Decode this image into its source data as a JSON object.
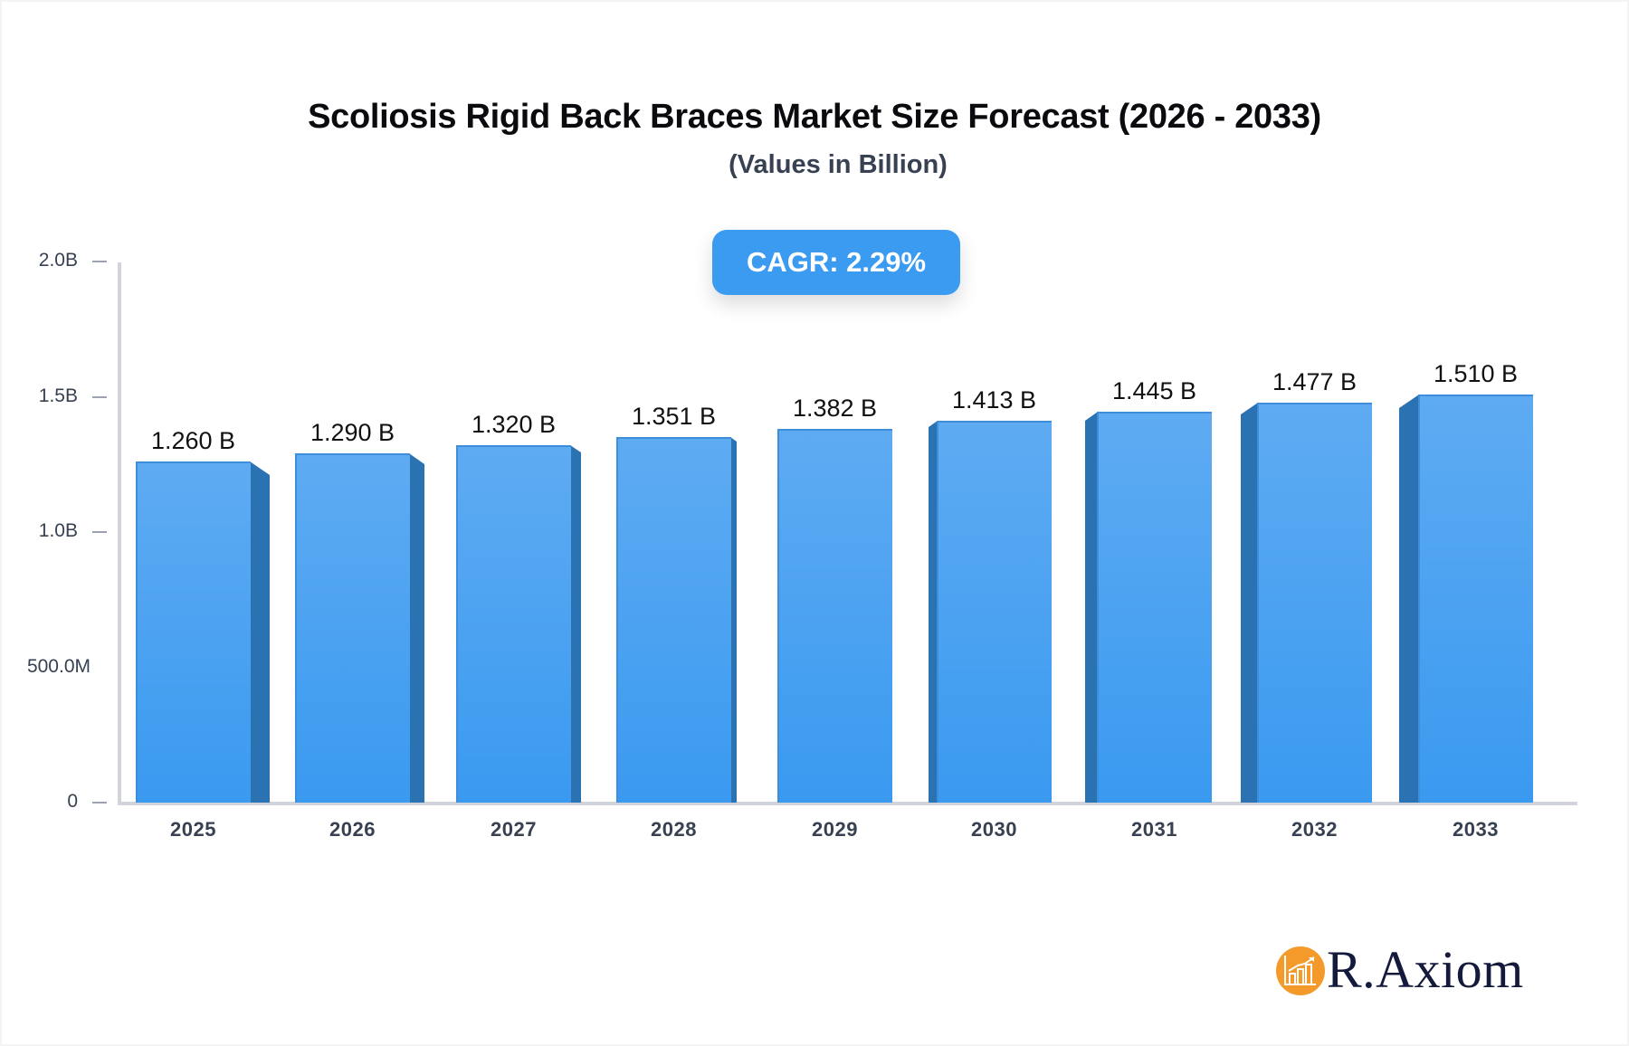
{
  "chart_data": {
    "type": "bar",
    "title": "Scoliosis Rigid Back Braces Market Size Forecast (2026 - 2033)",
    "subtitle": "(Values in Billion)",
    "xlabel": "",
    "ylabel": "",
    "categories": [
      "2025",
      "2026",
      "2027",
      "2028",
      "2029",
      "2030",
      "2031",
      "2032",
      "2033"
    ],
    "values": [
      1.26,
      1.29,
      1.32,
      1.351,
      1.382,
      1.413,
      1.445,
      1.477,
      1.51
    ],
    "value_labels": [
      "1.260 B",
      "1.290 B",
      "1.320 B",
      "1.351 B",
      "1.382 B",
      "1.413 B",
      "1.445 B",
      "1.477 B",
      "1.510 B"
    ],
    "unit": "Billion",
    "ylim": [
      0,
      2.0
    ],
    "yticks": [
      {
        "value": 0,
        "label": "0"
      },
      {
        "value": 0.5,
        "label": "500.0M"
      },
      {
        "value": 1.0,
        "label": "1.0B"
      },
      {
        "value": 1.5,
        "label": "1.5B"
      },
      {
        "value": 2.0,
        "label": "2.0B"
      }
    ],
    "grid": false,
    "legend": null,
    "annotations": [
      {
        "text": "CAGR: 2.29%",
        "position": "top-center"
      }
    ],
    "style": "3d-bar"
  },
  "header": {
    "title": "Scoliosis Rigid Back Braces Market Size Forecast (2026 - 2033)",
    "subtitle": "(Values in Billion)"
  },
  "badge": {
    "cagr_label": "CAGR: 2.29%"
  },
  "colors": {
    "bar_top": "#5eabf2",
    "bar_bottom": "#3a9af0",
    "bar_side": "#2b72b3",
    "badge": "#3b9bf0",
    "axis": "#d1d5db",
    "logo_orange": "#f39a2b",
    "logo_text": "#141a3c"
  },
  "branding": {
    "logo_text": "R.Axiom",
    "logo_icon": "chart-growth-icon"
  }
}
